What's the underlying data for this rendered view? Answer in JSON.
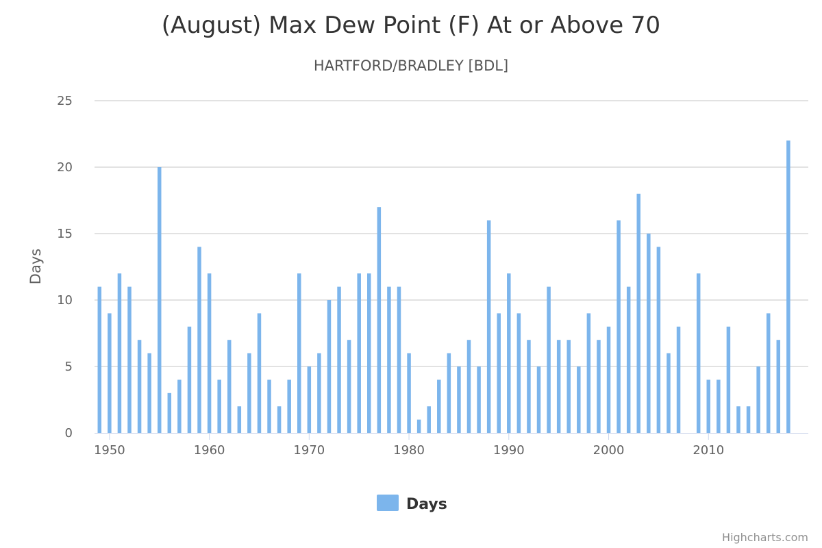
{
  "chart_data": {
    "type": "bar",
    "title": "(August) Max Dew Point (F) At or Above 70",
    "subtitle": "HARTFORD/BRADLEY [BDL]",
    "xlabel": "",
    "ylabel": "Days",
    "ylim": [
      0,
      25
    ],
    "y_ticks": [
      0,
      5,
      10,
      15,
      20,
      25
    ],
    "x_ticks": [
      1950,
      1960,
      1970,
      1980,
      1990,
      2000,
      2010
    ],
    "xlim": [
      1948.5,
      2020
    ],
    "grid": true,
    "legend_position": "bottom-center",
    "color": "#7cb5ec",
    "credits": "Highcharts.com",
    "series": [
      {
        "name": "Days",
        "x": [
          1949,
          1950,
          1951,
          1952,
          1953,
          1954,
          1955,
          1956,
          1957,
          1958,
          1959,
          1960,
          1961,
          1962,
          1963,
          1964,
          1965,
          1966,
          1967,
          1968,
          1969,
          1970,
          1971,
          1972,
          1973,
          1974,
          1975,
          1976,
          1977,
          1978,
          1979,
          1980,
          1981,
          1982,
          1983,
          1984,
          1985,
          1986,
          1987,
          1988,
          1989,
          1990,
          1991,
          1992,
          1993,
          1994,
          1995,
          1996,
          1997,
          1998,
          1999,
          2000,
          2001,
          2002,
          2003,
          2004,
          2005,
          2006,
          2007,
          2008,
          2009,
          2010,
          2011,
          2012,
          2013,
          2014,
          2015,
          2016,
          2017,
          2018
        ],
        "values": [
          11,
          9,
          12,
          11,
          7,
          6,
          20,
          3,
          4,
          8,
          14,
          12,
          4,
          7,
          2,
          6,
          9,
          4,
          2,
          4,
          12,
          5,
          6,
          10,
          11,
          7,
          12,
          12,
          17,
          11,
          11,
          6,
          1,
          2,
          4,
          6,
          5,
          7,
          5,
          16,
          9,
          12,
          9,
          7,
          5,
          11,
          7,
          7,
          5,
          9,
          7,
          8,
          16,
          11,
          18,
          15,
          14,
          6,
          8,
          0,
          12,
          4,
          4,
          8,
          2,
          2,
          5,
          9,
          7,
          22
        ]
      }
    ]
  }
}
